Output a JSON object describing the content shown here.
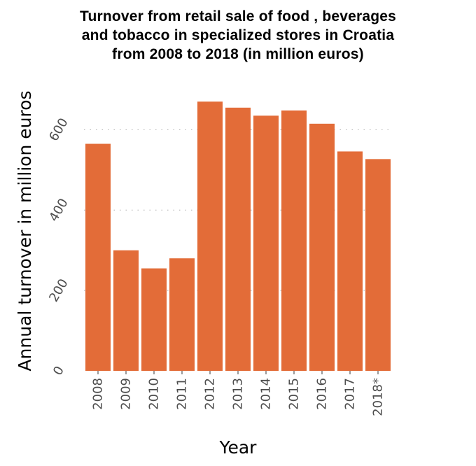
{
  "chart_data": {
    "type": "bar",
    "title_lines": [
      "Turnover from retail sale of food , beverages",
      "and tobacco in specialized stores in Croatia",
      "from 2008 to 2018 (in million euros)"
    ],
    "xlabel": "Year",
    "ylabel": "Annual turnover in million euros",
    "categories": [
      "2008",
      "2009",
      "2010",
      "2011",
      "2012",
      "2013",
      "2014",
      "2015",
      "2016",
      "2017",
      "2018*"
    ],
    "values": [
      565,
      300,
      255,
      280,
      670,
      655,
      635,
      648,
      615,
      546,
      527
    ],
    "ylim": [
      0,
      700
    ],
    "yticks": [
      0,
      200,
      400,
      600
    ],
    "ytick_labels": [
      "0",
      "200",
      "400",
      "600"
    ],
    "grid": "horizontal dotted",
    "bar_color": "#e36c38",
    "grid_color": "#b0b0b0",
    "legend": "none"
  }
}
